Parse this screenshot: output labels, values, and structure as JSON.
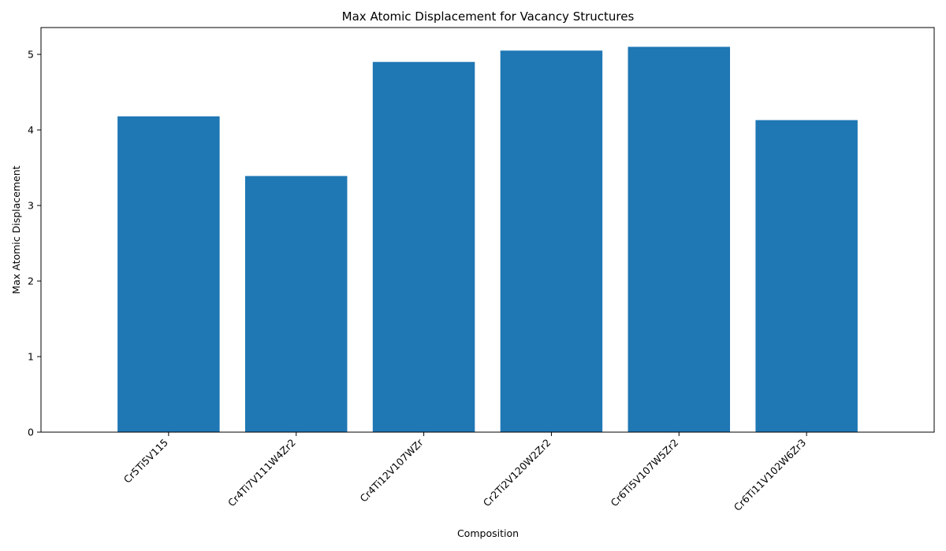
{
  "chart_data": {
    "type": "bar",
    "title": "Max Atomic Displacement for Vacancy Structures",
    "xlabel": "Composition",
    "ylabel": "Max Atomic Displacement",
    "categories": [
      "Cr5Ti5V115",
      "Cr4Ti7V111W4Zr2",
      "Cr4Ti12V107WZr",
      "Cr2Ti2V120W2Zr2",
      "Cr6Ti5V107W5Zr2",
      "Cr6Ti11V102W6Zr3"
    ],
    "values": [
      4.18,
      3.39,
      4.9,
      5.05,
      5.1,
      4.13
    ],
    "ylim": [
      0,
      5.355
    ],
    "yticks": [
      0,
      1,
      2,
      3,
      4,
      5
    ],
    "bar_color": "#1f77b4",
    "grid": false,
    "legend": "none"
  }
}
